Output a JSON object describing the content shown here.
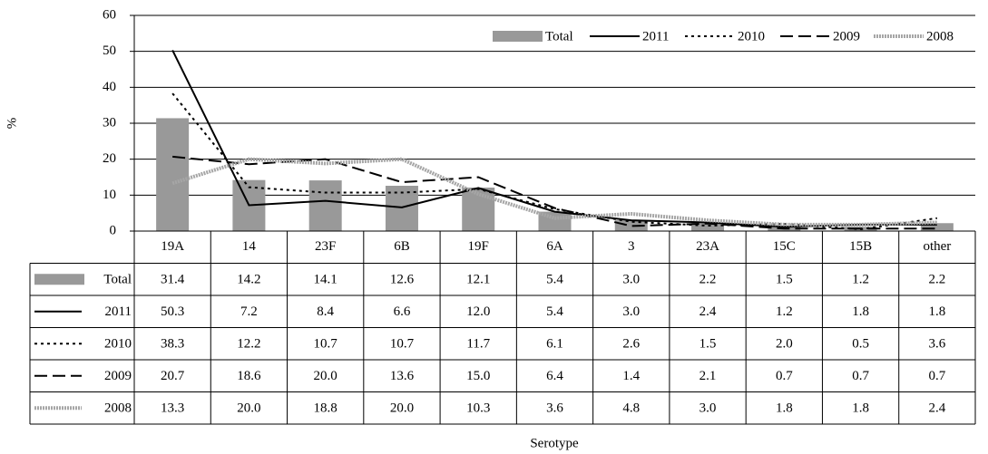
{
  "chart_data": {
    "type": "combo",
    "y_label": "%",
    "x_label": "Serotype",
    "categories": [
      "19A",
      "14",
      "23F",
      "6B",
      "19F",
      "6A",
      "3",
      "23A",
      "15C",
      "15B",
      "other"
    ],
    "ylim": [
      0,
      60
    ],
    "yticks": [
      0,
      10,
      20,
      30,
      40,
      50,
      60
    ],
    "grid": true,
    "legend": "top-right",
    "series": [
      {
        "name": "Total",
        "type": "bar",
        "color": "#999999",
        "line_style": "solid",
        "values": [
          31.4,
          14.2,
          14.1,
          12.6,
          12.1,
          5.4,
          3,
          2.2,
          1.5,
          1.2,
          2.2
        ],
        "value_labels": [
          "31.4",
          "14.2",
          "14.1",
          "12.6",
          "12.1",
          "5.4",
          "3.0",
          "2.2",
          "1.5",
          "1.2",
          "2.2"
        ]
      },
      {
        "name": "2011",
        "type": "line",
        "color": "#000000",
        "line_style": "solid",
        "values": [
          50.3,
          7.2,
          8.4,
          6.6,
          12,
          5.4,
          3,
          2.4,
          1.2,
          1.8,
          1.8
        ],
        "value_labels": [
          "50.3",
          "7.2",
          "8.4",
          "6.6",
          "12.0",
          "5.4",
          "3.0",
          "2.4",
          "1.2",
          "1.8",
          "1.8"
        ]
      },
      {
        "name": "2010",
        "type": "line",
        "color": "#000000",
        "line_style": "dotted",
        "values": [
          38.3,
          12.2,
          10.7,
          10.7,
          11.7,
          6.1,
          2.6,
          1.5,
          2,
          0.5,
          3.6
        ],
        "value_labels": [
          "38.3",
          "12.2",
          "10.7",
          "10.7",
          "11.7",
          "6.1",
          "2.6",
          "1.5",
          "2.0",
          "0.5",
          "3.6"
        ]
      },
      {
        "name": "2009",
        "type": "line",
        "color": "#000000",
        "line_style": "dashed",
        "values": [
          20.7,
          18.6,
          20,
          13.6,
          15,
          6.4,
          1.4,
          2.1,
          0.7,
          0.7,
          0.7
        ],
        "value_labels": [
          "20.7",
          "18.6",
          "20.0",
          "13.6",
          "15.0",
          "6.4",
          "1.4",
          "2.1",
          "0.7",
          "0.7",
          "0.7"
        ]
      },
      {
        "name": "2008",
        "type": "line",
        "color": "#a6a6a6",
        "line_style": "textured",
        "values": [
          13.3,
          20,
          18.8,
          20,
          10.3,
          3.6,
          4.8,
          3,
          1.8,
          1.8,
          2.4
        ],
        "value_labels": [
          "13.3",
          "20.0",
          "18.8",
          "20.0",
          "10.3",
          "3.6",
          "4.8",
          "3.0",
          "1.8",
          "1.8",
          "2.4"
        ]
      }
    ]
  }
}
